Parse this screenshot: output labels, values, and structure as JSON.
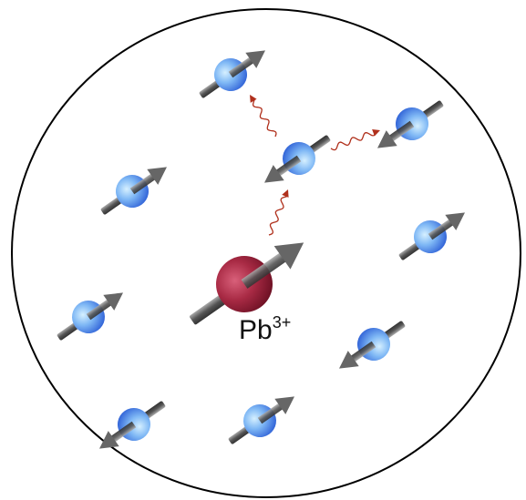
{
  "label": {
    "base": "Pb",
    "superscript": "3+"
  }
}
